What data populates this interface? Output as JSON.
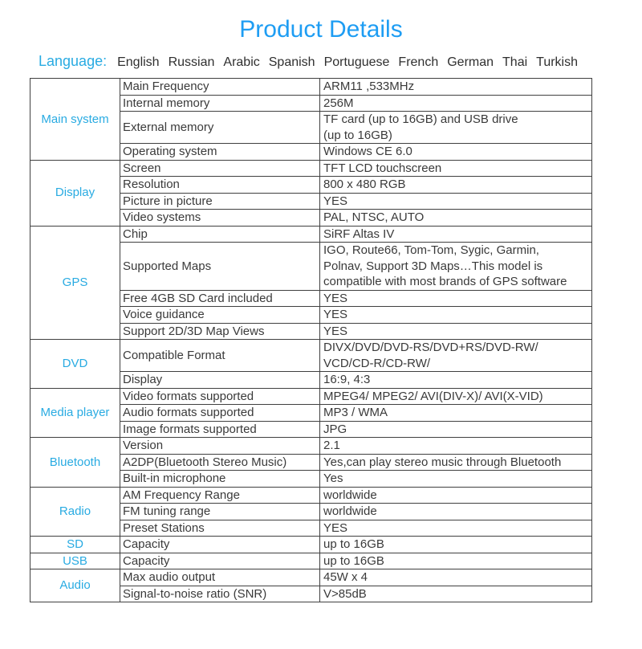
{
  "title": "Product Details",
  "language": {
    "label": "Language:",
    "options": [
      "English",
      "Russian",
      "Arabic",
      "Spanish",
      "Portuguese",
      "French",
      "German",
      "Thai",
      "Turkish"
    ]
  },
  "colors": {
    "title_blue": "#1e9df3",
    "accent_blue": "#29abe2",
    "text": "#3a3a3a",
    "border": "#404040"
  },
  "table": {
    "sections": [
      {
        "category": "Main system",
        "rows": [
          {
            "name": "Main Frequency",
            "value": "ARM11 ,533MHz"
          },
          {
            "name": "Internal memory",
            "value": "256M"
          },
          {
            "name": "External memory",
            "value": "TF card (up to 16GB) and USB drive\n(up to 16GB)"
          },
          {
            "name": "Operating system",
            "value": "Windows CE 6.0"
          }
        ]
      },
      {
        "category": "Display",
        "rows": [
          {
            "name": "Screen",
            "value": "TFT LCD touchscreen"
          },
          {
            "name": "Resolution",
            "value": "800 x 480 RGB"
          },
          {
            "name": "Picture in picture",
            "value": "YES"
          },
          {
            "name": "Video systems",
            "value": "PAL, NTSC, AUTO"
          }
        ]
      },
      {
        "category": "GPS",
        "rows": [
          {
            "name": "Chip",
            "value": "SiRF Altas IV"
          },
          {
            "name": "Supported Maps",
            "value": "IGO, Route66, Tom-Tom, Sygic, Garmin,\nPolnav, Support 3D Maps…This model is\ncompatible with most brands of GPS software"
          },
          {
            "name": "Free 4GB SD Card included",
            "value": "YES"
          },
          {
            "name": "Voice guidance",
            "value": "YES"
          },
          {
            "name": "Support 2D/3D Map Views",
            "value": "YES"
          }
        ]
      },
      {
        "category": "DVD",
        "rows": [
          {
            "name": "Compatible Format",
            "value": "DIVX/DVD/DVD-RS/DVD+RS/DVD-RW/\nVCD/CD-R/CD-RW/"
          },
          {
            "name": "Display",
            "value": "16:9, 4:3"
          }
        ]
      },
      {
        "category": "Media player",
        "rows": [
          {
            "name": "Video formats supported",
            "value": "MPEG4/ MPEG2/ AVI(DIV-X)/ AVI(X-VID)"
          },
          {
            "name": "Audio formats supported",
            "value": "MP3 / WMA"
          },
          {
            "name": "Image formats supported",
            "value": "JPG"
          }
        ]
      },
      {
        "category": "Bluetooth",
        "rows": [
          {
            "name": "Version",
            "value": "2.1"
          },
          {
            "name": "A2DP(Bluetooth Stereo Music)",
            "value": "Yes,can play stereo music through Bluetooth"
          },
          {
            "name": "Built-in microphone",
            "value": "Yes"
          }
        ]
      },
      {
        "category": "Radio",
        "rows": [
          {
            "name": "AM Frequency Range",
            "value": "worldwide"
          },
          {
            "name": "FM tuning range",
            "value": "worldwide"
          },
          {
            "name": "Preset Stations",
            "value": "YES"
          }
        ]
      },
      {
        "category": "SD",
        "rows": [
          {
            "name": "Capacity",
            "value": "up to 16GB"
          }
        ]
      },
      {
        "category": "USB",
        "rows": [
          {
            "name": "Capacity",
            "value": "up to 16GB"
          }
        ]
      },
      {
        "category": "Audio",
        "rows": [
          {
            "name": "Max audio output",
            "value": "45W x 4"
          },
          {
            "name": "Signal-to-noise ratio (SNR)",
            "value": "V>85dB"
          }
        ]
      }
    ]
  }
}
